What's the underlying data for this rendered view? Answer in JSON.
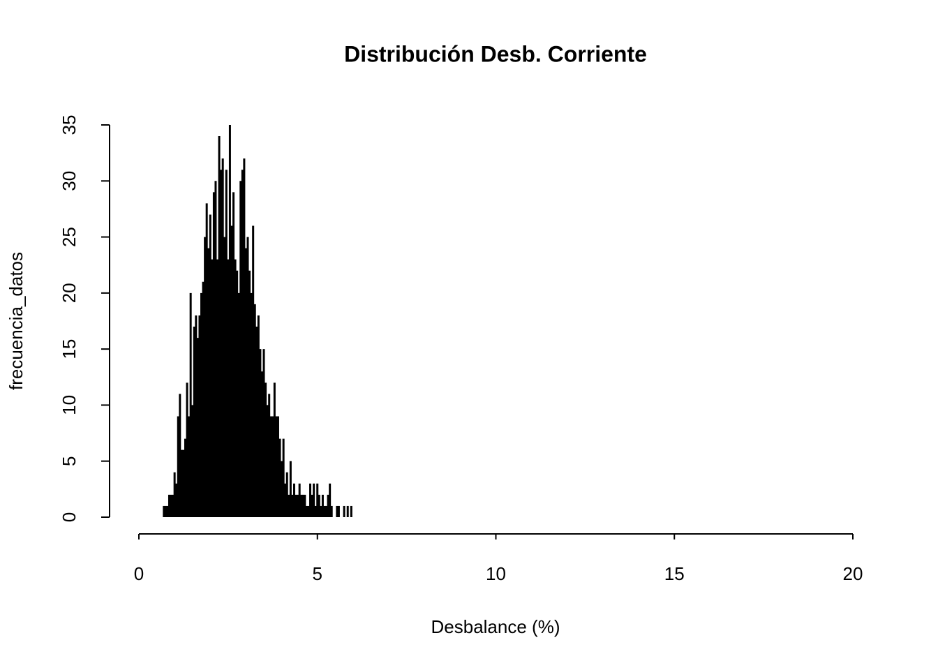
{
  "chart_data": {
    "type": "bar",
    "title": "Distribución Desb. Corriente",
    "x_label": "Desbalance (%)",
    "y_label": "frecuencia_datos",
    "x": [
      0.7,
      0.75,
      0.8,
      0.85,
      0.9,
      0.95,
      1,
      1.05,
      1.1,
      1.15,
      1.2,
      1.25,
      1.3,
      1.35,
      1.4,
      1.45,
      1.5,
      1.55,
      1.6,
      1.65,
      1.7,
      1.75,
      1.8,
      1.85,
      1.9,
      1.95,
      2,
      2.05,
      2.1,
      2.15,
      2.2,
      2.25,
      2.3,
      2.35,
      2.4,
      2.45,
      2.5,
      2.55,
      2.6,
      2.65,
      2.7,
      2.75,
      2.8,
      2.85,
      2.9,
      2.95,
      3,
      3.05,
      3.1,
      3.15,
      3.2,
      3.25,
      3.3,
      3.35,
      3.4,
      3.45,
      3.5,
      3.55,
      3.6,
      3.65,
      3.7,
      3.75,
      3.8,
      3.85,
      3.9,
      3.95,
      4,
      4.05,
      4.1,
      4.15,
      4.2,
      4.25,
      4.3,
      4.35,
      4.4,
      4.45,
      4.5,
      4.55,
      4.6,
      4.65,
      4.7,
      4.75,
      4.8,
      4.85,
      4.9,
      4.95,
      5,
      5.05,
      5.1,
      5.15,
      5.2,
      5.25,
      5.3,
      5.35,
      5.4,
      5.45,
      5.5,
      5.55,
      5.6,
      5.65,
      5.7,
      5.75,
      5.8,
      5.85,
      5.9,
      5.95
    ],
    "values": [
      1,
      1,
      1,
      2,
      2,
      2,
      4,
      3,
      9,
      11,
      6,
      6,
      7,
      12,
      9,
      20,
      10,
      17,
      18,
      16,
      18,
      20,
      21,
      25,
      28,
      24,
      27,
      23,
      29,
      30,
      23,
      34,
      31,
      32,
      25,
      31,
      23,
      35,
      26,
      29,
      23,
      22,
      20,
      30,
      31,
      32,
      24,
      25,
      22,
      20,
      26,
      19,
      17,
      18,
      15,
      13,
      15,
      12,
      10,
      11,
      9,
      9,
      12,
      9,
      9,
      7,
      5,
      7,
      3,
      4,
      2,
      5,
      2,
      3,
      2,
      2,
      3,
      2,
      2,
      2,
      1,
      1,
      3,
      2,
      3,
      1,
      3,
      2,
      1,
      2,
      1,
      1,
      2,
      3,
      1,
      0,
      0,
      1,
      1,
      0,
      0,
      1,
      0,
      1,
      0,
      1
    ],
    "color": "#000000",
    "xlim": [
      0,
      20
    ],
    "xticks": [
      0,
      5,
      10,
      15,
      20
    ],
    "ylim": [
      0,
      35
    ],
    "yticks": [
      0,
      5,
      10,
      15,
      20,
      25,
      30,
      35
    ]
  }
}
